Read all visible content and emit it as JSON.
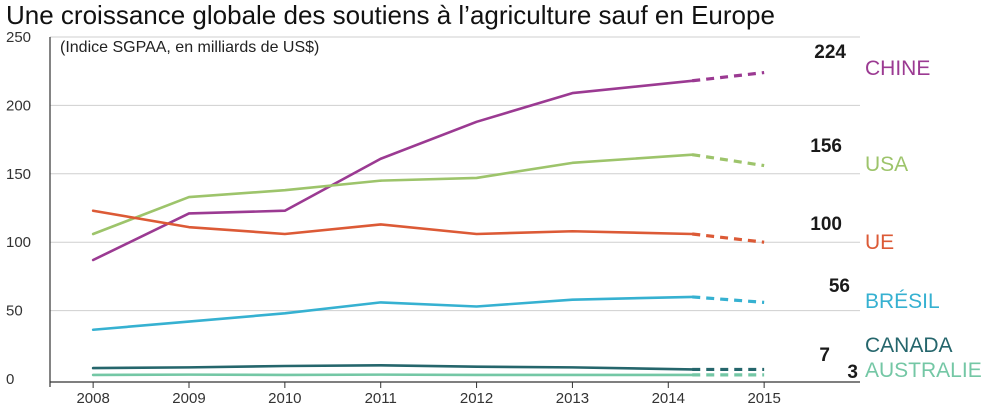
{
  "chart_data": {
    "type": "line",
    "title": "Une croissance globale des soutiens à l’agriculture sauf en Europe",
    "subtitle": "(Indice SGPAA, en milliards de US$)",
    "x": [
      2008,
      2009,
      2010,
      2011,
      2012,
      2013,
      2014,
      2015
    ],
    "x_tick_labels": [
      "2008",
      "2009",
      "2010",
      "2011",
      "2012",
      "2013",
      "2014",
      "2015"
    ],
    "y_ticks": [
      0,
      50,
      100,
      150,
      200,
      250
    ],
    "y_tick_labels": [
      "0",
      "50",
      "100",
      "150",
      "200",
      "250"
    ],
    "xlim": [
      2007.55,
      2016.0
    ],
    "ylim": [
      0,
      250
    ],
    "grid": "horizontal",
    "projection_from": 2014.25,
    "series": [
      {
        "name": "CHINE",
        "color": "#9b3a92",
        "x": [
          2008,
          2009,
          2010,
          2011,
          2012,
          2013,
          2014.25,
          2015
        ],
        "values": [
          87,
          121,
          123,
          161,
          188,
          209,
          218,
          224
        ],
        "end_label": "224"
      },
      {
        "name": "USA",
        "color": "#9dc46b",
        "x": [
          2008,
          2009,
          2010,
          2011,
          2012,
          2013,
          2014.25,
          2015
        ],
        "values": [
          106,
          133,
          138,
          145,
          147,
          158,
          164,
          156
        ],
        "end_label": "156"
      },
      {
        "name": "UE",
        "color": "#dc5a36",
        "x": [
          2008,
          2009,
          2010,
          2011,
          2012,
          2013,
          2014.25,
          2015
        ],
        "values": [
          123,
          111,
          106,
          113,
          106,
          108,
          106,
          100
        ],
        "end_label": "100"
      },
      {
        "name": "BRÉSIL",
        "color": "#36b1d1",
        "x": [
          2008,
          2009,
          2010,
          2011,
          2012,
          2013,
          2014.25,
          2015
        ],
        "values": [
          36,
          42,
          48,
          56,
          53,
          58,
          60,
          56
        ],
        "end_label": "56"
      },
      {
        "name": "CANADA",
        "color": "#25666c",
        "x": [
          2008,
          2009,
          2010,
          2011,
          2012,
          2013,
          2014.25,
          2015
        ],
        "values": [
          8,
          8.5,
          9.5,
          10,
          9,
          8.5,
          7,
          7
        ],
        "end_label": "7"
      },
      {
        "name": "AUSTRALIE",
        "color": "#74c7a5",
        "x": [
          2008,
          2009,
          2010,
          2011,
          2012,
          2013,
          2014.25,
          2015
        ],
        "values": [
          3,
          3.2,
          3,
          3.2,
          3,
          3,
          3,
          3
        ],
        "end_label": "3"
      }
    ]
  }
}
